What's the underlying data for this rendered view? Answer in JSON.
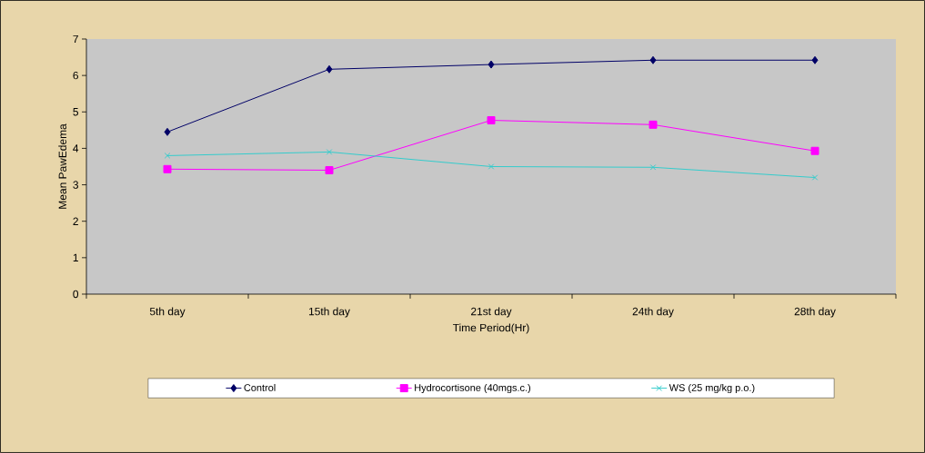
{
  "chart_data": {
    "type": "line",
    "xlabel": "Time Period(Hr)",
    "ylabel": "Mean PawEdema",
    "categories": [
      "5th day",
      "15th day",
      "21st day",
      "24th day",
      "28th day"
    ],
    "series": [
      {
        "name": "Control",
        "color": "#000066",
        "marker": "diamond",
        "values": [
          4.45,
          6.17,
          6.3,
          6.42,
          6.42
        ]
      },
      {
        "name": "Hydrocortisone (40mgs.c.)",
        "color": "#ff00ff",
        "marker": "square",
        "values": [
          3.43,
          3.4,
          4.77,
          4.65,
          3.93
        ]
      },
      {
        "name": "WS (25 mg/kg p.o.)",
        "color": "#33cccc",
        "marker": "cross",
        "values": [
          3.8,
          3.9,
          3.5,
          3.48,
          3.2
        ]
      }
    ],
    "ylim": [
      0,
      7
    ],
    "yticks": [
      0,
      1,
      2,
      3,
      4,
      5,
      6,
      7
    ],
    "grid": false,
    "legend": "bottom",
    "line_style": "solid"
  }
}
